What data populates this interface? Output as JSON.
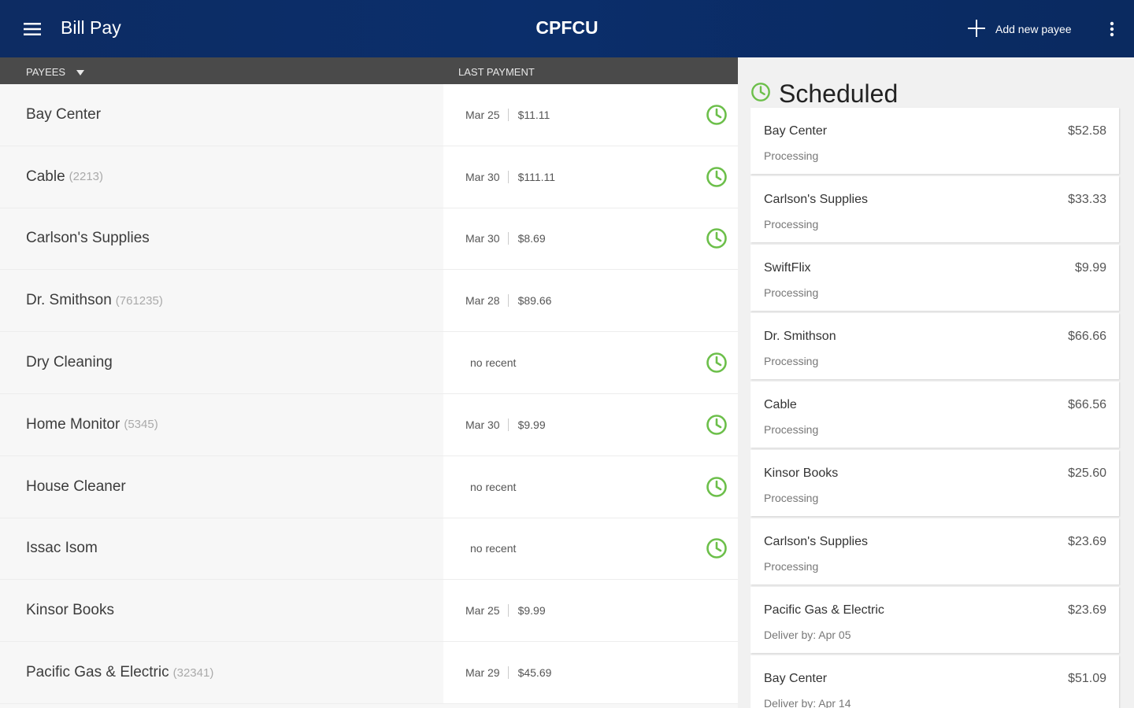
{
  "appbar": {
    "title": "Bill Pay",
    "brand": "CPFCU",
    "add_payee_label": "Add new payee",
    "menu_icon": "hamburger-menu-icon",
    "overflow_icon": "more-vert-icon"
  },
  "colors": {
    "appbar": "#0b2e6b",
    "header_bar": "#4a4a4a",
    "clock_green": "#6cbf4a"
  },
  "payees": {
    "header_label": "PAYEES",
    "last_payment_label": "LAST PAYMENT",
    "rows": [
      {
        "name": "Bay Center",
        "acct": "",
        "date": "Mar 25",
        "amount": "$11.11",
        "recent": true,
        "clock": true
      },
      {
        "name": "Cable",
        "acct": "(2213)",
        "date": "Mar 30",
        "amount": "$111.11",
        "recent": true,
        "clock": true
      },
      {
        "name": "Carlson's Supplies",
        "acct": "",
        "date": "Mar 30",
        "amount": "$8.69",
        "recent": true,
        "clock": true
      },
      {
        "name": "Dr. Smithson",
        "acct": "(761235)",
        "date": "Mar 28",
        "amount": "$89.66",
        "recent": true,
        "clock": false
      },
      {
        "name": "Dry Cleaning",
        "acct": "",
        "date": "",
        "amount": "",
        "recent": false,
        "no_recent_label": "no recent",
        "clock": true
      },
      {
        "name": "Home Monitor",
        "acct": "(5345)",
        "date": "Mar 30",
        "amount": "$9.99",
        "recent": true,
        "clock": true
      },
      {
        "name": "House Cleaner",
        "acct": "",
        "date": "",
        "amount": "",
        "recent": false,
        "no_recent_label": "no recent",
        "clock": true
      },
      {
        "name": "Issac Isom",
        "acct": "",
        "date": "",
        "amount": "",
        "recent": false,
        "no_recent_label": "no recent",
        "clock": true
      },
      {
        "name": "Kinsor Books",
        "acct": "",
        "date": "Mar 25",
        "amount": "$9.99",
        "recent": true,
        "clock": false
      },
      {
        "name": "Pacific Gas & Electric",
        "acct": "(32341)",
        "date": "Mar 29",
        "amount": "$45.69",
        "recent": true,
        "clock": false
      }
    ]
  },
  "scheduled": {
    "title": "Scheduled",
    "items": [
      {
        "name": "Bay Center",
        "amount": "$52.58",
        "status": "Processing"
      },
      {
        "name": "Carlson's Supplies",
        "amount": "$33.33",
        "status": "Processing"
      },
      {
        "name": "SwiftFlix",
        "amount": "$9.99",
        "status": "Processing"
      },
      {
        "name": "Dr. Smithson",
        "amount": "$66.66",
        "status": "Processing"
      },
      {
        "name": "Cable",
        "amount": "$66.56",
        "status": "Processing"
      },
      {
        "name": "Kinsor Books",
        "amount": "$25.60",
        "status": "Processing"
      },
      {
        "name": "Carlson's Supplies",
        "amount": "$23.69",
        "status": "Processing"
      },
      {
        "name": "Pacific Gas & Electric",
        "amount": "$23.69",
        "status": "Deliver by: Apr 05"
      },
      {
        "name": "Bay Center",
        "amount": "$51.09",
        "status": "Deliver by: Apr 14"
      }
    ]
  }
}
